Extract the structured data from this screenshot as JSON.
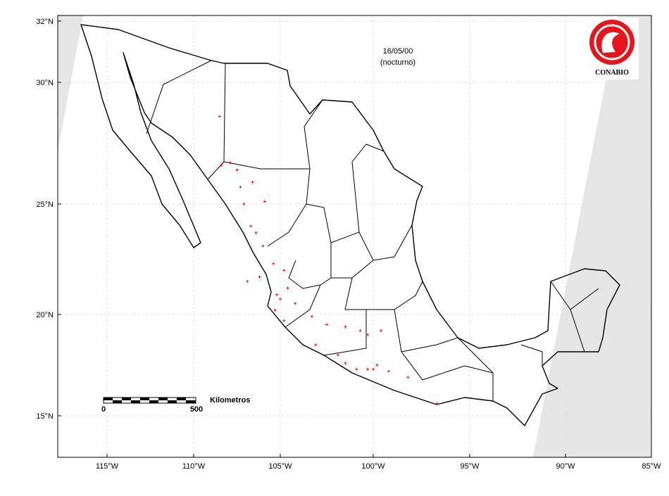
{
  "map": {
    "date": "16/05/00",
    "period": "(nocturno)",
    "logo_text": "CONABIO",
    "scale_bar": {
      "start": 0,
      "end": 500,
      "label": "Kilometros"
    },
    "xticks": [
      {
        "value": -115,
        "label": "115°W"
      },
      {
        "value": -110,
        "label": "110°W"
      },
      {
        "value": -105,
        "label": "105°W"
      },
      {
        "value": -100,
        "label": "100°W"
      },
      {
        "value": -95,
        "label": "95°W"
      },
      {
        "value": -90,
        "label": "90°W"
      },
      {
        "value": -85,
        "label": "85°W"
      }
    ],
    "yticks": [
      {
        "value": 32,
        "label": "32°N"
      },
      {
        "value": 30,
        "label": "30°N"
      },
      {
        "value": 25,
        "label": "25°N"
      },
      {
        "value": 20,
        "label": "20°N"
      },
      {
        "value": 15,
        "label": "15°N"
      }
    ],
    "fires": [
      [
        -108.5,
        28.6
      ],
      [
        -108.4,
        26.6
      ],
      [
        -107.9,
        26.7
      ],
      [
        -107.5,
        26.4
      ],
      [
        -107.3,
        25.7
      ],
      [
        -106.6,
        25.9
      ],
      [
        -105.9,
        25.1
      ],
      [
        -107.1,
        25.0
      ],
      [
        -106.7,
        24.0
      ],
      [
        -106.4,
        23.7
      ],
      [
        -106.0,
        23.1
      ],
      [
        -105.4,
        22.3
      ],
      [
        -104.8,
        22.0
      ],
      [
        -104.6,
        21.2
      ],
      [
        -105.2,
        20.9
      ],
      [
        -105.0,
        20.7
      ],
      [
        -105.3,
        20.2
      ],
      [
        -104.8,
        19.7
      ],
      [
        -104.2,
        20.5
      ],
      [
        -103.3,
        19.9
      ],
      [
        -102.5,
        19.5
      ],
      [
        -101.5,
        19.4
      ],
      [
        -100.7,
        19.2
      ],
      [
        -100.3,
        19.0
      ],
      [
        -99.6,
        19.2
      ],
      [
        -103.1,
        18.5
      ],
      [
        -101.9,
        18.0
      ],
      [
        -101.5,
        17.6
      ],
      [
        -100.9,
        17.3
      ],
      [
        -100.3,
        17.3
      ],
      [
        -100.0,
        17.3
      ],
      [
        -99.8,
        17.5
      ],
      [
        -99.2,
        17.2
      ],
      [
        -98.2,
        16.9
      ],
      [
        -96.7,
        15.6
      ],
      [
        -106.2,
        21.7
      ],
      [
        -106.9,
        21.5
      ]
    ]
  }
}
